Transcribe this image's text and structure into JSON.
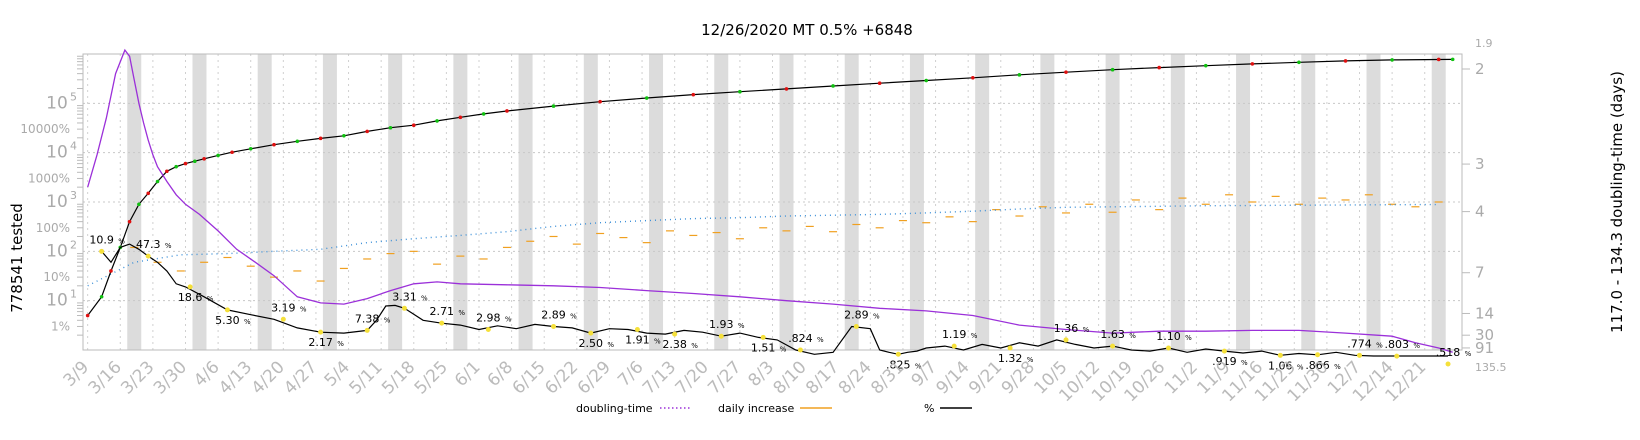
{
  "chart_data": {
    "type": "line",
    "title": "12/26/2020 MT 0.5% +6848",
    "ylabel_left": "778541 tested",
    "ylabel_right": "117.0 - 134.3 doubling-time (days)",
    "y_scale": "log",
    "ylim": [
      1,
      1000000
    ],
    "left_ticks_power": [
      {
        "label": "10",
        "sup": "1",
        "value": 10
      },
      {
        "label": "10",
        "sup": "2",
        "value": 100
      },
      {
        "label": "10",
        "sup": "3",
        "value": 1000
      },
      {
        "label": "10",
        "sup": "4",
        "value": 10000
      },
      {
        "label": "10",
        "sup": "5",
        "value": 100000
      }
    ],
    "left_ticks_percent": [
      "1%",
      "10%",
      "100%",
      "1000%",
      "10000%"
    ],
    "right_ticks": [
      "1.9",
      "2",
      "3",
      "4",
      "7",
      "14",
      "30",
      "91",
      "135.5"
    ],
    "x_tick_labels": [
      "3/9",
      "3/16",
      "3/23",
      "3/30",
      "4/6",
      "4/13",
      "4/20",
      "4/27",
      "5/4",
      "5/11",
      "5/18",
      "5/25",
      "6/1",
      "6/8",
      "6/15",
      "6/22",
      "6/29",
      "7/6",
      "7/13",
      "7/20",
      "7/27",
      "8/3",
      "8/10",
      "8/17",
      "8/24",
      "8/31",
      "9/7",
      "9/14",
      "9/21",
      "9/28",
      "10/5",
      "10/12",
      "10/19",
      "10/26",
      "11/2",
      "11/9",
      "11/16",
      "11/23",
      "11/30",
      "12/7",
      "12/14",
      "12/21"
    ],
    "legend": [
      {
        "name": "doubling-time",
        "color": "#9b30d9",
        "style": "dotted"
      },
      {
        "name": "daily increase",
        "color": "#f0a020",
        "style": "solid"
      },
      {
        "name": "%",
        "color": "#000000",
        "style": "solid"
      }
    ],
    "grid": true,
    "weekend_shading": true,
    "tested_series": {
      "name": "tested",
      "x_day": [
        0,
        3,
        5,
        7,
        9,
        11,
        13,
        15,
        17,
        19,
        21,
        23,
        25,
        28,
        31,
        35,
        40,
        45,
        50,
        55,
        60,
        65,
        70,
        75,
        80,
        85,
        90,
        100,
        110,
        120,
        130,
        140,
        150,
        160,
        170,
        180,
        190,
        200,
        210,
        220,
        230,
        240,
        250,
        260,
        270,
        280,
        290,
        293
      ],
      "values": [
        5,
        12,
        40,
        120,
        400,
        900,
        1500,
        2600,
        4200,
        5200,
        6000,
        6700,
        7500,
        8800,
        10200,
        12000,
        14500,
        17000,
        19500,
        22000,
        27000,
        32000,
        36000,
        44000,
        52000,
        61000,
        70000,
        88000,
        108000,
        128000,
        150000,
        172000,
        196000,
        225000,
        256000,
        290000,
        330000,
        378000,
        428000,
        480000,
        530000,
        580000,
        630000,
        680000,
        725000,
        760000,
        775000,
        778541
      ]
    },
    "percent_annotations": [
      "10.9",
      "47.3",
      "18.6",
      "5.30",
      "3.19",
      "2.17",
      "7.38",
      "3.31",
      "2.71",
      "2.98",
      "2.89",
      "2.50",
      "1.91",
      "2.38",
      "1.93",
      "1.51",
      ".824",
      "2.89",
      ".825",
      "1.19",
      "1.32",
      "1.36",
      "1.63",
      "1.10",
      ".919",
      "1.06",
      ".866",
      ".774",
      ".803",
      ".518"
    ],
    "percent_series": {
      "name": "%",
      "x_day": [
        3,
        5,
        7,
        9,
        11,
        13,
        15,
        17,
        19,
        21,
        25,
        30,
        35,
        40,
        45,
        50,
        55,
        60,
        62,
        64,
        66,
        68,
        72,
        76,
        80,
        84,
        88,
        92,
        96,
        100,
        104,
        108,
        112,
        116,
        120,
        124,
        128,
        132,
        136,
        140,
        144,
        148,
        152,
        156,
        160,
        164,
        168,
        170,
        172,
        174,
        176,
        178,
        180,
        184,
        188,
        192,
        196,
        200,
        204,
        208,
        212,
        216,
        220,
        224,
        228,
        232,
        236,
        240,
        244,
        248,
        252,
        256,
        260,
        264,
        268,
        272,
        276,
        280,
        284,
        288,
        292
      ],
      "values": [
        100,
        60,
        120,
        140,
        110,
        80,
        60,
        40,
        22,
        19,
        12,
        6.5,
        5.2,
        4.2,
        2.8,
        2.3,
        2.2,
        2.5,
        4,
        7.8,
        8,
        7,
        4,
        3.5,
        3.2,
        2.6,
        3.1,
        2.7,
        3.3,
        3.0,
        2.8,
        2.2,
        2.7,
        2.6,
        2.2,
        2.1,
        2.5,
        2.3,
        1.9,
        2.2,
        1.8,
        1.6,
        1.0,
        0.82,
        0.9,
        3.0,
        2.7,
        1.0,
        0.9,
        0.82,
        0.9,
        0.95,
        1.1,
        1.2,
        1.0,
        1.3,
        1.1,
        1.4,
        1.2,
        1.6,
        1.3,
        1.1,
        1.2,
        1.0,
        0.95,
        1.1,
        0.9,
        1.05,
        0.95,
        0.87,
        0.95,
        0.78,
        0.85,
        0.8,
        0.9,
        0.78,
        0.7,
        0.75,
        0.65,
        0.6,
        0.52
      ]
    },
    "doubling_series": {
      "name": "doubling-time",
      "x_day": [
        0,
        2,
        4,
        6,
        8,
        9,
        10,
        11,
        12,
        13,
        14,
        15,
        17,
        19,
        21,
        24,
        28,
        32,
        36,
        40,
        45,
        50,
        55,
        60,
        65,
        70,
        75,
        80,
        90,
        100,
        110,
        120,
        130,
        140,
        150,
        160,
        170,
        180,
        190,
        200,
        210,
        220,
        230,
        240,
        250,
        260,
        270,
        280,
        285,
        290,
        293
      ],
      "values": [
        2000,
        9000,
        50000,
        400000,
        1200000,
        900000,
        300000,
        100000,
        40000,
        18000,
        9000,
        5200,
        2600,
        1400,
        900,
        560,
        260,
        110,
        60,
        32,
        12,
        9,
        8.5,
        11,
        16,
        22,
        24,
        22,
        21,
        20,
        18.5,
        16,
        14,
        12,
        10,
        8.5,
        7,
        6.2,
        5,
        3.2,
        2.6,
        2.2,
        2.4,
        2.4,
        2.5,
        2.5,
        2.2,
        1.9,
        1.4,
        1.1,
        0.9
      ]
    },
    "daily_increase_series": {
      "name": "daily increase",
      "x_day": [
        10,
        15,
        20,
        25,
        30,
        35,
        40,
        45,
        50,
        55,
        60,
        65,
        70,
        75,
        80,
        85,
        90,
        95,
        100,
        105,
        110,
        115,
        120,
        125,
        130,
        135,
        140,
        145,
        150,
        155,
        160,
        165,
        170,
        175,
        180,
        185,
        190,
        195,
        200,
        205,
        210,
        215,
        220,
        225,
        230,
        235,
        240,
        245,
        250,
        255,
        260,
        265,
        270,
        275,
        280,
        285,
        290
      ],
      "values": [
        120,
        60,
        40,
        60,
        75,
        50,
        30,
        40,
        25,
        45,
        70,
        90,
        100,
        55,
        80,
        70,
        120,
        160,
        200,
        140,
        230,
        190,
        150,
        260,
        210,
        240,
        180,
        300,
        260,
        320,
        250,
        350,
        300,
        420,
        380,
        500,
        400,
        700,
        520,
        800,
        600,
        900,
        620,
        1100,
        700,
        1200,
        900,
        1400,
        1000,
        1300,
        900,
        1200,
        1100,
        1400,
        900,
        800,
        1000
      ]
    },
    "trend_dots_series": {
      "name": "trend",
      "x_day": [
        0,
        10,
        20,
        30,
        40,
        50,
        60,
        70,
        80,
        90,
        100,
        110,
        120,
        130,
        140,
        150,
        160,
        170,
        180,
        190,
        200,
        210,
        220,
        230,
        240,
        250,
        260,
        270,
        280,
        290
      ],
      "values": [
        20,
        60,
        85,
        90,
        100,
        110,
        150,
        180,
        210,
        250,
        320,
        380,
        420,
        460,
        480,
        520,
        540,
        560,
        600,
        650,
        720,
        780,
        800,
        820,
        840,
        850,
        860,
        870,
        880,
        890
      ]
    }
  }
}
